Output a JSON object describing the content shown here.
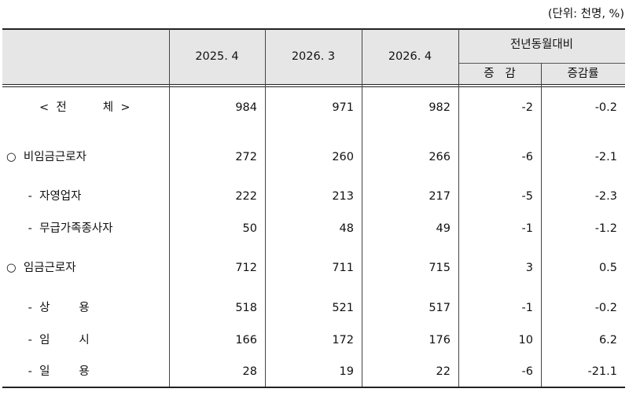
{
  "unit": "(단위: 천명, %)",
  "table": {
    "headers": [
      "2025. 4",
      "2026. 3",
      "2026. 4"
    ],
    "group_header": "전년동월대비",
    "sub_headers": [
      "증   감",
      "증감률"
    ],
    "rows": [
      {
        "label": "<  전          체  >",
        "values": [
          984,
          971,
          982,
          -2,
          -0.2
        ]
      },
      {
        "label": "○  비임금근로자",
        "values": [
          272,
          260,
          266,
          -6,
          -2.1
        ]
      },
      {
        "label": "      -  자영업자",
        "values": [
          222,
          213,
          217,
          -5,
          -2.3
        ]
      },
      {
        "label": "      -  무급가족종사자",
        "values": [
          50,
          48,
          49,
          -1,
          -1.2
        ]
      },
      {
        "label": "○  임금근로자",
        "values": [
          712,
          711,
          715,
          3,
          0.5
        ]
      },
      {
        "label": "      -  상        용",
        "values": [
          518,
          521,
          517,
          -1,
          -0.2
        ]
      },
      {
        "label": "      -  임        시",
        "values": [
          166,
          172,
          176,
          10,
          6.2
        ]
      },
      {
        "label": "      -  일        용",
        "values": [
          28,
          19,
          22,
          -6,
          -21.1
        ]
      }
    ]
  }
}
